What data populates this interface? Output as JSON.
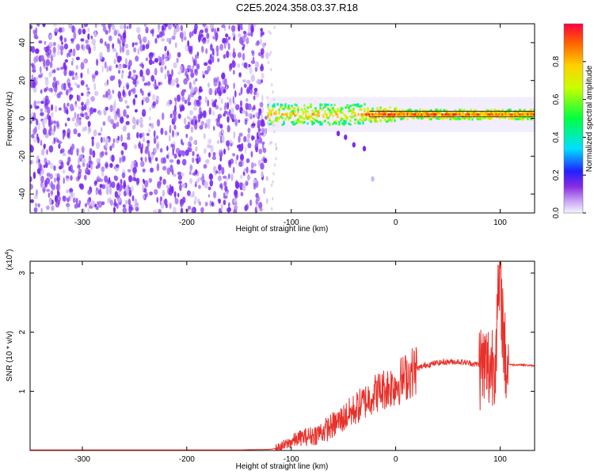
{
  "title": "C2E5.2024.358.03.37.R18",
  "colors": {
    "axis": "#000000",
    "snr_line": "#e8312b",
    "spectrogram_background": "#ffffff",
    "noise_purple": "#7b2cf0",
    "noise_light": "#cdb8f2"
  },
  "chart_data": [
    {
      "type": "heatmap",
      "title": "C2E5.2024.358.03.37.R18",
      "xlabel": "Height of straight line (km)",
      "ylabel": "Frequency (Hz)",
      "xlim": [
        -350,
        133
      ],
      "ylim": [
        -50,
        50
      ],
      "xticks": [
        -300,
        -200,
        -100,
        0,
        100
      ],
      "yticks": [
        -40,
        -20,
        0,
        20,
        40
      ],
      "colorbar": {
        "label": "Normalized spectral amplitude",
        "range": [
          0.0,
          1.0
        ],
        "ticks": [
          0.0,
          0.2,
          0.4,
          0.6,
          0.8
        ],
        "tick_labels": [
          "0.0",
          "0.2",
          "0.4",
          "0.6",
          "0.8"
        ],
        "colormap": [
          "#f7f5ff",
          "#8a2be2",
          "#2020ff",
          "#00e0ff",
          "#00ff40",
          "#c8ff00",
          "#ffd000",
          "#ff6000",
          "#ff0040"
        ]
      },
      "regions": [
        {
          "name": "noise",
          "x_range": [
            -350,
            -123
          ],
          "y_range": [
            -50,
            50
          ],
          "amplitude": 0.15
        },
        {
          "name": "signal",
          "x_range": [
            -123,
            133
          ],
          "center_freq": 2,
          "amplitude": 0.7
        }
      ],
      "grid": false
    },
    {
      "type": "line",
      "xlabel": "Height of straight line (km)",
      "ylabel": "SNR (10 * v/v)",
      "y_multiplier": "(x10",
      "y_multiplier_exp": "4",
      "y_multiplier_close": ")",
      "xlim": [
        -350,
        133
      ],
      "ylim": [
        0,
        3.2
      ],
      "xticks": [
        -300,
        -200,
        -100,
        0,
        100
      ],
      "yticks": [
        1,
        2,
        3
      ],
      "series": [
        {
          "x": [
            -350,
            -300,
            -250,
            -200,
            -150,
            -120,
            -110,
            -100,
            -90,
            -80,
            -70,
            -60,
            -50,
            -40,
            -30,
            -20,
            -10,
            0,
            10,
            20,
            30,
            40,
            50,
            60,
            70,
            80,
            90,
            95,
            100,
            105,
            110,
            120,
            133
          ],
          "values": [
            0.01,
            0.01,
            0.01,
            0.01,
            0.01,
            0.02,
            0.05,
            0.15,
            0.22,
            0.25,
            0.32,
            0.42,
            0.55,
            0.68,
            0.82,
            0.97,
            1.05,
            1.12,
            1.25,
            1.38,
            1.45,
            1.48,
            1.5,
            1.5,
            1.48,
            1.45,
            1.4,
            1.6,
            2.9,
            1.5,
            1.45,
            1.45,
            1.43
          ]
        }
      ],
      "grid": false
    }
  ]
}
